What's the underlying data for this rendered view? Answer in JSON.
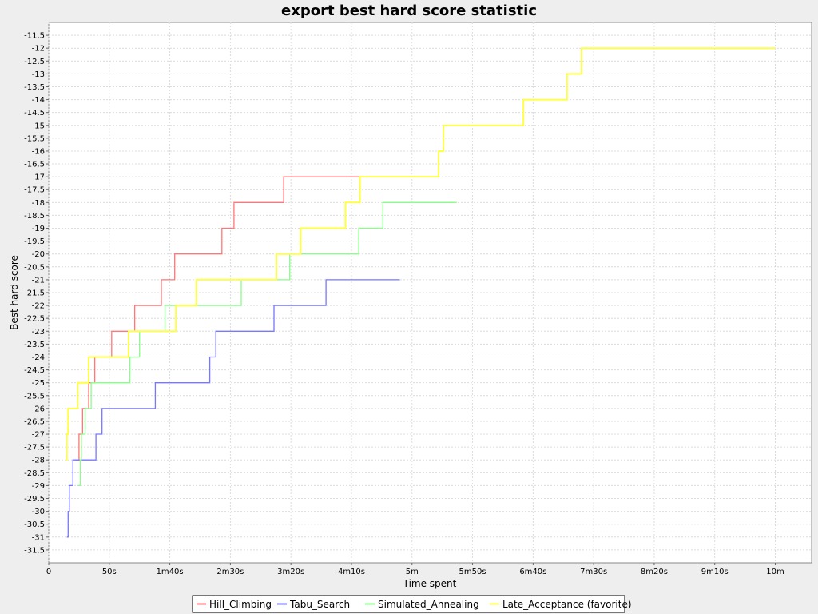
{
  "chart_data": {
    "type": "line",
    "title": "export best hard score statistic",
    "xlabel": "Time spent",
    "ylabel": "Best hard score",
    "x_unit": "seconds",
    "xlim": [
      0,
      630
    ],
    "ylim": [
      -32,
      -11
    ],
    "x_ticks": [
      {
        "value": 0,
        "label": "0"
      },
      {
        "value": 50,
        "label": "50s"
      },
      {
        "value": 100,
        "label": "1m40s"
      },
      {
        "value": 150,
        "label": "2m30s"
      },
      {
        "value": 200,
        "label": "3m20s"
      },
      {
        "value": 250,
        "label": "4m10s"
      },
      {
        "value": 300,
        "label": "5m"
      },
      {
        "value": 350,
        "label": "5m50s"
      },
      {
        "value": 400,
        "label": "6m40s"
      },
      {
        "value": 450,
        "label": "7m30s"
      },
      {
        "value": 500,
        "label": "8m20s"
      },
      {
        "value": 550,
        "label": "9m10s"
      },
      {
        "value": 600,
        "label": "10m"
      }
    ],
    "y_ticks": [
      -11.5,
      -12,
      -12.5,
      -13,
      -13.5,
      -14,
      -14.5,
      -15,
      -15.5,
      -16,
      -16.5,
      -17,
      -17.5,
      -18,
      -18.5,
      -19,
      -19.5,
      -20,
      -20.5,
      -21,
      -21.5,
      -22,
      -22.5,
      -23,
      -23.5,
      -24,
      -24.5,
      -25,
      -25.5,
      -26,
      -26.5,
      -27,
      -27.5,
      -28,
      -28.5,
      -29,
      -29.5,
      -30,
      -30.5,
      -31,
      -31.5
    ],
    "grid": true,
    "legend_position": "bottom",
    "series": [
      {
        "name": "Hill_Climbing",
        "color": "#ff7777",
        "step": true,
        "points": [
          [
            22,
            -28
          ],
          [
            25,
            -27
          ],
          [
            28,
            -26
          ],
          [
            33,
            -25
          ],
          [
            38,
            -24
          ],
          [
            52,
            -23
          ],
          [
            71,
            -22
          ],
          [
            93,
            -21
          ],
          [
            104,
            -20
          ],
          [
            143,
            -19
          ],
          [
            153,
            -18
          ],
          [
            194,
            -17
          ],
          [
            290,
            -17
          ]
        ]
      },
      {
        "name": "Tabu_Search",
        "color": "#7777ff",
        "step": true,
        "points": [
          [
            15,
            -31
          ],
          [
            16,
            -30
          ],
          [
            17,
            -29
          ],
          [
            20,
            -28
          ],
          [
            39,
            -27
          ],
          [
            44,
            -26
          ],
          [
            88,
            -25
          ],
          [
            133,
            -24
          ],
          [
            138,
            -23
          ],
          [
            186,
            -22
          ],
          [
            229,
            -21
          ],
          [
            290,
            -21
          ]
        ]
      },
      {
        "name": "Simulated_Annealing",
        "color": "#88ff88",
        "step": true,
        "points": [
          [
            24,
            -29
          ],
          [
            26,
            -28
          ],
          [
            27,
            -27
          ],
          [
            30,
            -26
          ],
          [
            35,
            -25
          ],
          [
            67,
            -24
          ],
          [
            75,
            -23
          ],
          [
            96,
            -22
          ],
          [
            159,
            -21
          ],
          [
            199,
            -20
          ],
          [
            256,
            -19
          ],
          [
            276,
            -18
          ],
          [
            337,
            -18
          ]
        ]
      },
      {
        "name": "Late_Acceptance (favorite)",
        "color": "#ffff44",
        "step": true,
        "points": [
          [
            14,
            -28
          ],
          [
            15,
            -27
          ],
          [
            16,
            -26
          ],
          [
            24,
            -25
          ],
          [
            33,
            -24
          ],
          [
            66,
            -23
          ],
          [
            105,
            -22
          ],
          [
            122,
            -21
          ],
          [
            188,
            -20
          ],
          [
            208,
            -19
          ],
          [
            245,
            -18
          ],
          [
            257,
            -17
          ],
          [
            322,
            -16
          ],
          [
            326,
            -15
          ],
          [
            392,
            -14
          ],
          [
            428,
            -13
          ],
          [
            440,
            -12
          ],
          [
            600,
            -12
          ]
        ]
      }
    ]
  }
}
